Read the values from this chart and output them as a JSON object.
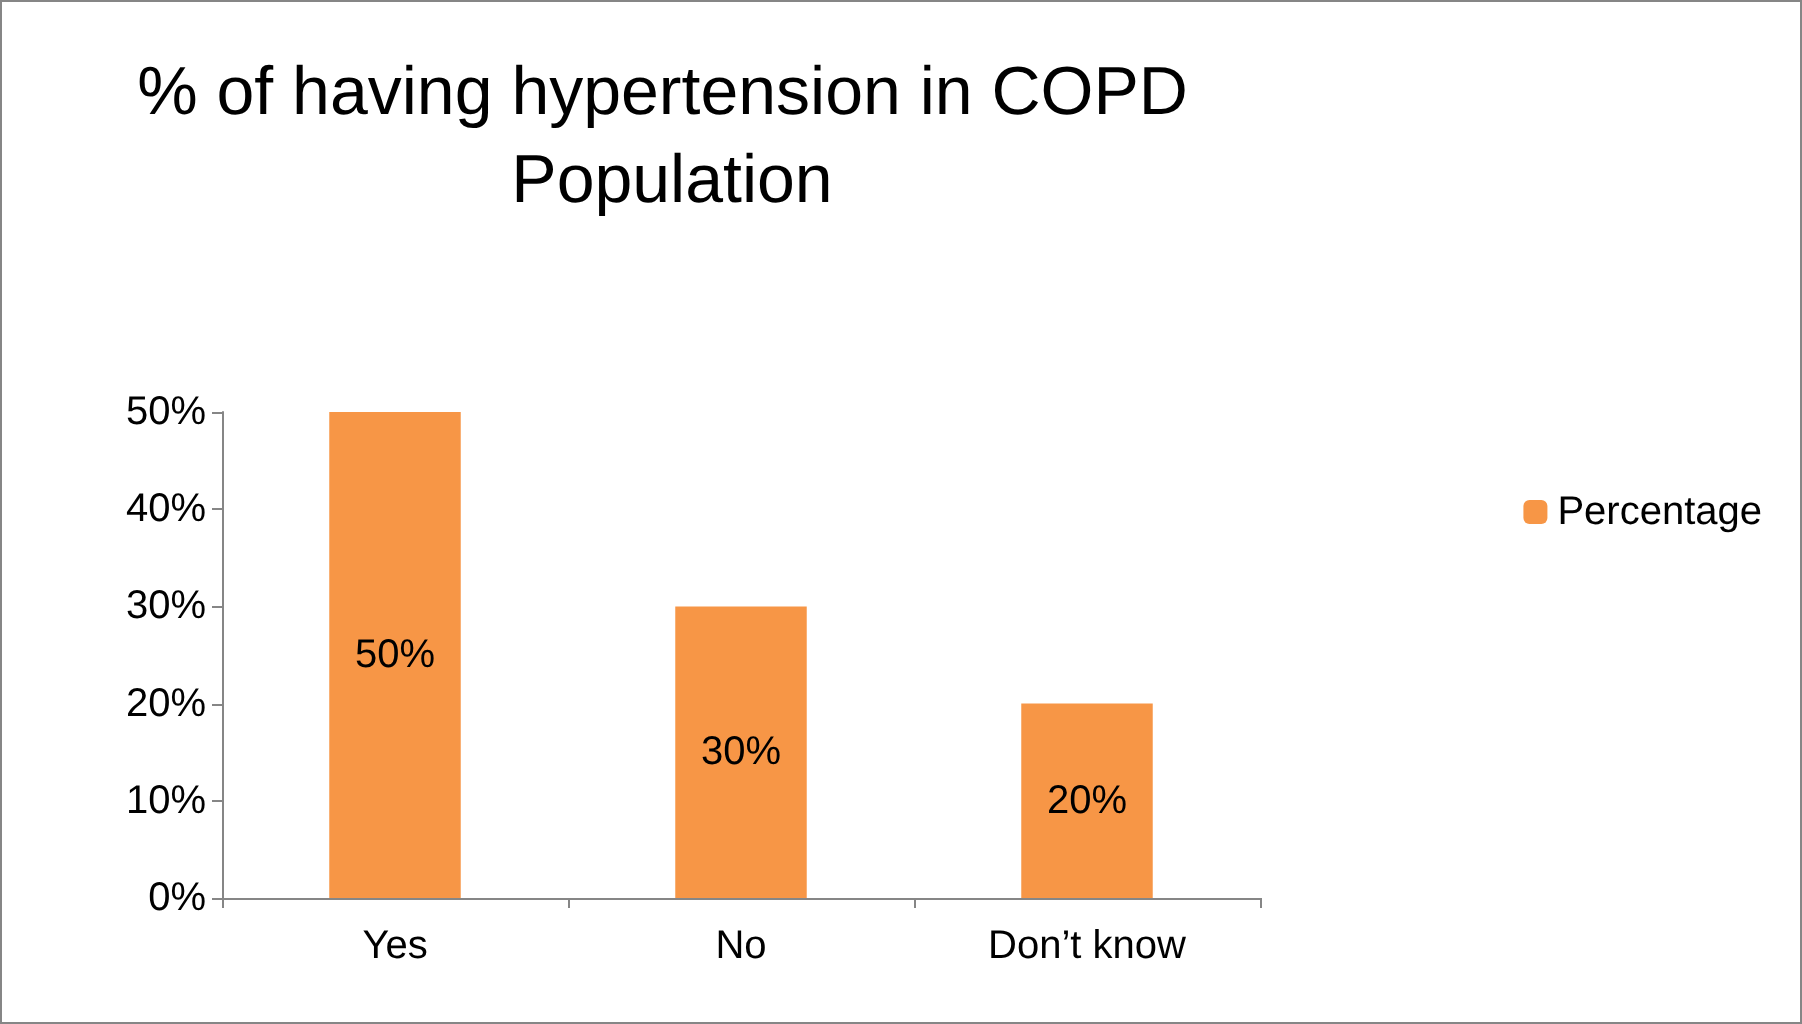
{
  "chart_data": {
    "type": "bar",
    "title": "% of having hypertension in COPD Population",
    "categories": [
      "Yes",
      "No",
      "Don’t know"
    ],
    "series": [
      {
        "name": "Percentage",
        "color": "#f79646",
        "values": [
          50,
          30,
          20
        ],
        "value_labels": [
          "50%",
          "30%",
          "20%"
        ]
      }
    ],
    "ylim": [
      0,
      50
    ],
    "yticks": [
      {
        "value": 0,
        "label": "0%"
      },
      {
        "value": 10,
        "label": "10%"
      },
      {
        "value": 20,
        "label": "20%"
      },
      {
        "value": 30,
        "label": "30%"
      },
      {
        "value": 40,
        "label": "40%"
      },
      {
        "value": 50,
        "label": "50%"
      }
    ],
    "grid": false,
    "legend": "right"
  }
}
